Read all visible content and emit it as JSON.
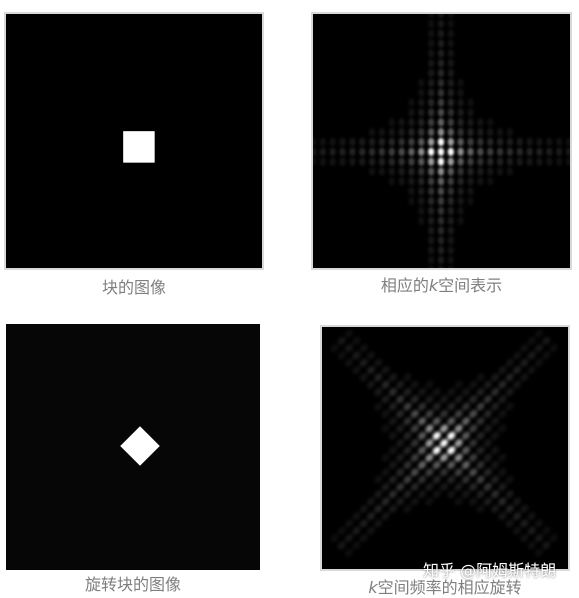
{
  "captions": {
    "top_left": "块的图像",
    "top_right_prefix": "相应的",
    "top_right_k": "k",
    "top_right_suffix": "空间表示",
    "bottom_left": "旋转块的图像",
    "bottom_right_k": "k",
    "bottom_right_suffix": "空间频率的相应旋转"
  },
  "watermark": "知乎 @阿姆斯特朗",
  "colors": {
    "panel_bg": "#000000",
    "panel_border": "#d9d9d9",
    "caption_text": "#7f7f7f",
    "feature": "#ffffff"
  }
}
